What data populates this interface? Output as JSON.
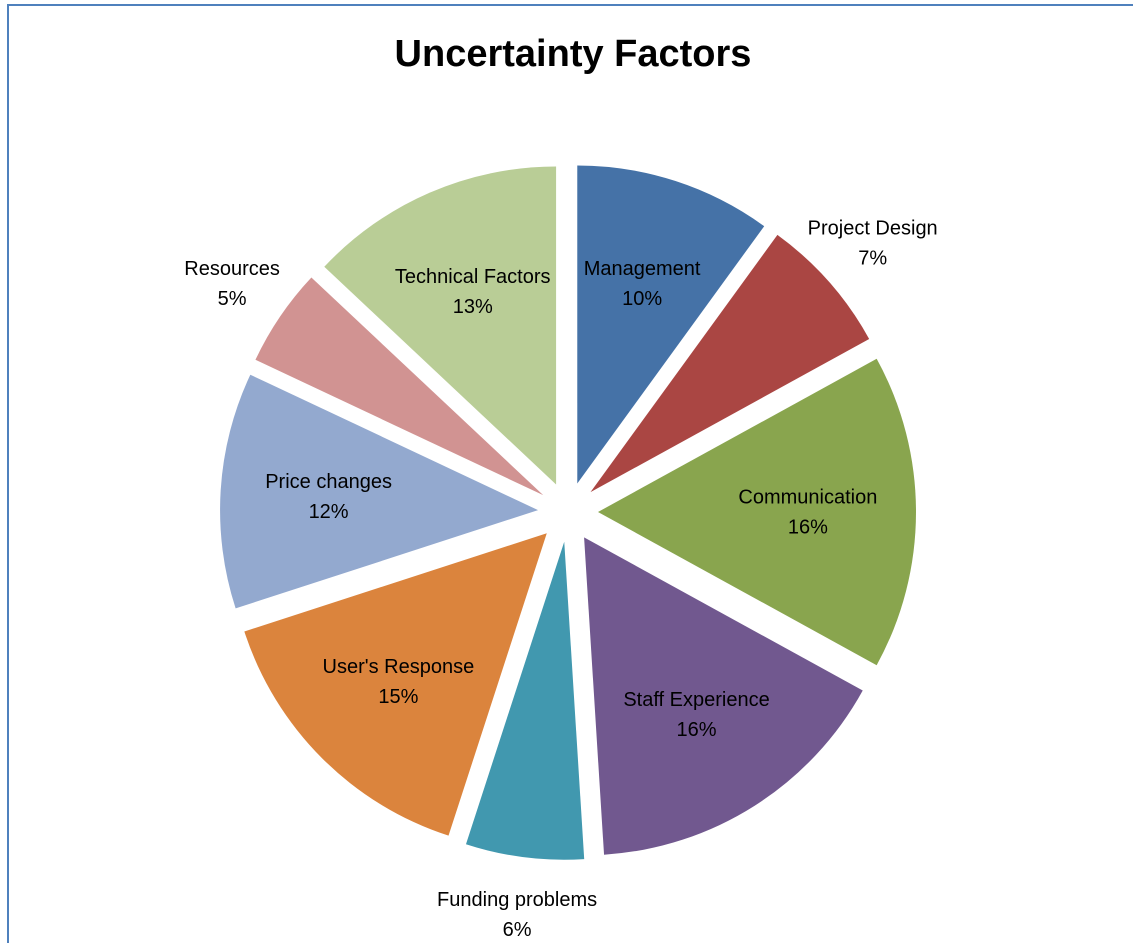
{
  "chart_data": {
    "type": "pie",
    "title": "Uncertainty Factors",
    "categories": [
      "Management",
      "Project Design",
      "Communication",
      "Staff Experience",
      "Funding problems",
      "User's Response",
      "Price changes",
      "Resources",
      "Technical Factors"
    ],
    "values": [
      10,
      7,
      16,
      16,
      6,
      15,
      12,
      5,
      13
    ],
    "value_labels": [
      "10%",
      "7%",
      "16%",
      "16%",
      "6%",
      "15%",
      "12%",
      "5%",
      "13%"
    ],
    "colors": [
      "#4572a7",
      "#aa4643",
      "#89a54e",
      "#71588f",
      "#4198af",
      "#db843d",
      "#93a9cf",
      "#d19392",
      "#b9cd96"
    ]
  }
}
